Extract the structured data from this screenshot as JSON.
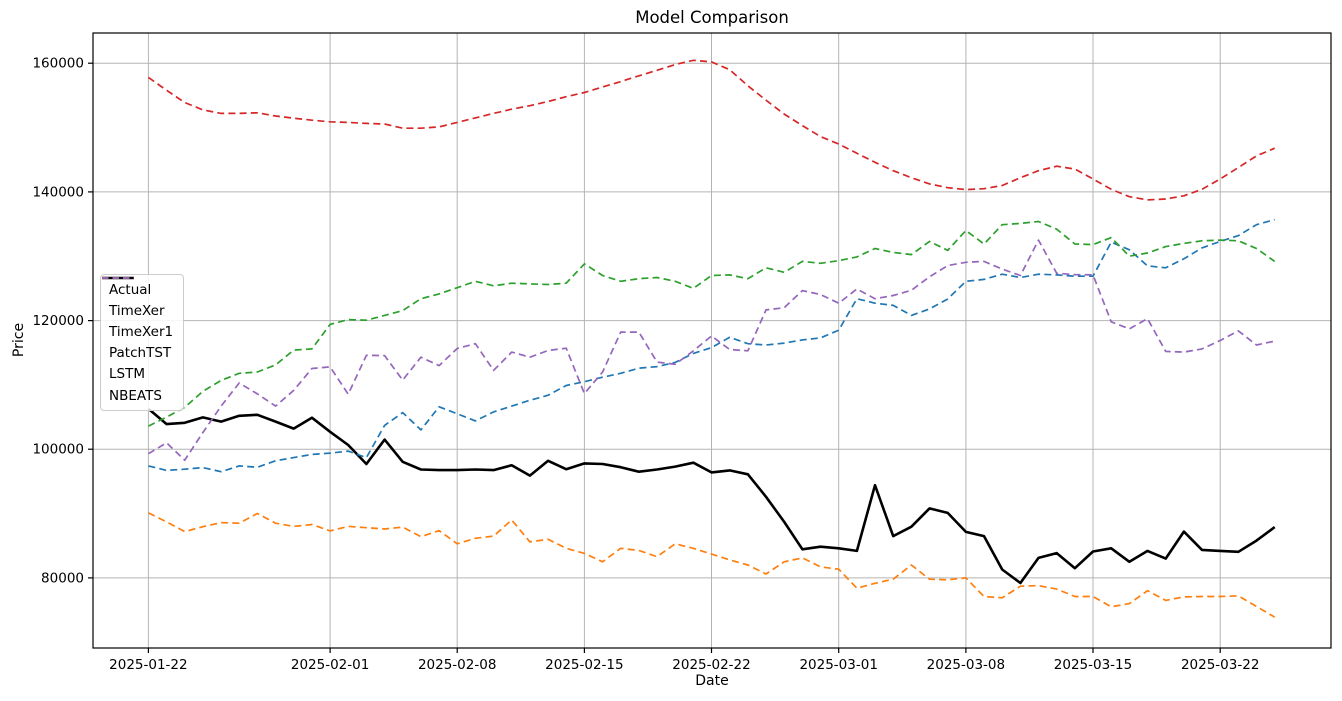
{
  "chart_data": {
    "type": "line",
    "title": "Model Comparison",
    "xlabel": "Date",
    "ylabel": "Price",
    "grid": true,
    "legend_position": "left-center",
    "ylim": [
      69100,
      164700
    ],
    "xlim_days": [
      -3.05,
      65.1
    ],
    "yticks": [
      80000,
      100000,
      120000,
      140000,
      160000
    ],
    "ytick_labels": [
      "80000",
      "100000",
      "120000",
      "140000",
      "160000"
    ],
    "xticks": [
      {
        "index": 0,
        "label": "2025-01-22"
      },
      {
        "index": 10,
        "label": "2025-02-01"
      },
      {
        "index": 17,
        "label": "2025-02-08"
      },
      {
        "index": 24,
        "label": "2025-02-15"
      },
      {
        "index": 31,
        "label": "2025-02-22"
      },
      {
        "index": 38,
        "label": "2025-03-01"
      },
      {
        "index": 45,
        "label": "2025-03-08"
      },
      {
        "index": 52,
        "label": "2025-03-15"
      },
      {
        "index": 59,
        "label": "2025-03-22"
      }
    ],
    "x": [
      "2025-01-22",
      "2025-01-23",
      "2025-01-24",
      "2025-01-25",
      "2025-01-26",
      "2025-01-27",
      "2025-01-28",
      "2025-01-29",
      "2025-01-30",
      "2025-01-31",
      "2025-02-01",
      "2025-02-02",
      "2025-02-03",
      "2025-02-04",
      "2025-02-05",
      "2025-02-06",
      "2025-02-07",
      "2025-02-08",
      "2025-02-09",
      "2025-02-10",
      "2025-02-11",
      "2025-02-12",
      "2025-02-13",
      "2025-02-14",
      "2025-02-15",
      "2025-02-16",
      "2025-02-17",
      "2025-02-18",
      "2025-02-19",
      "2025-02-20",
      "2025-02-21",
      "2025-02-22",
      "2025-02-23",
      "2025-02-24",
      "2025-02-25",
      "2025-02-26",
      "2025-02-27",
      "2025-02-28",
      "2025-03-01",
      "2025-03-02",
      "2025-03-03",
      "2025-03-04",
      "2025-03-05",
      "2025-03-06",
      "2025-03-07",
      "2025-03-08",
      "2025-03-09",
      "2025-03-10",
      "2025-03-11",
      "2025-03-12",
      "2025-03-13",
      "2025-03-14",
      "2025-03-15",
      "2025-03-16",
      "2025-03-17",
      "2025-03-18",
      "2025-03-19",
      "2025-03-20",
      "2025-03-21",
      "2025-03-22",
      "2025-03-23",
      "2025-03-24",
      "2025-03-25"
    ],
    "series": [
      {
        "name": "Actual",
        "color": "#000000",
        "style": "solid",
        "width": 2.6,
        "values": [
          106300,
          103900,
          104100,
          104950,
          104300,
          105200,
          105350,
          104300,
          103200,
          104900,
          102700,
          100650,
          97700,
          101500,
          98050,
          96850,
          96750,
          96750,
          96850,
          96750,
          97500,
          95900,
          98200,
          96900,
          97800,
          97700,
          97200,
          96500,
          96850,
          97300,
          97900,
          96400,
          96700,
          96100,
          92600,
          88700,
          84450,
          84850,
          84600,
          84200,
          94400,
          86500,
          87950,
          90800,
          90100,
          87150,
          86500,
          81300,
          79200,
          83100,
          83850,
          81500,
          84100,
          84600,
          82500,
          84200,
          83000,
          87200,
          84350,
          84200,
          84050,
          85800,
          87900
        ]
      },
      {
        "name": "TimeXer",
        "color": "#1f77b4",
        "style": "dashed",
        "width": 1.7,
        "values": [
          97400,
          96700,
          96900,
          97150,
          96500,
          97400,
          97200,
          98200,
          98700,
          99200,
          99400,
          99700,
          98700,
          103700,
          105700,
          103000,
          106600,
          105500,
          104400,
          105800,
          106700,
          107600,
          108400,
          109900,
          110500,
          111200,
          111800,
          112600,
          112850,
          113500,
          114900,
          115800,
          117400,
          116400,
          116200,
          116500,
          117000,
          117300,
          118500,
          123400,
          122700,
          122350,
          120800,
          121800,
          123350,
          126100,
          126400,
          127200,
          126700,
          127200,
          127100,
          126900,
          126900,
          132200,
          131000,
          128500,
          128200,
          129600,
          131300,
          132300,
          133200,
          134900,
          135700
        ]
      },
      {
        "name": "TimeXer1",
        "color": "#ff7f0e",
        "style": "dashed",
        "width": 1.7,
        "values": [
          90100,
          88700,
          87200,
          87950,
          88600,
          88500,
          90000,
          88500,
          88000,
          88300,
          87300,
          88000,
          87800,
          87600,
          87900,
          86400,
          87350,
          85300,
          86150,
          86500,
          89000,
          85600,
          86000,
          84600,
          83800,
          82500,
          84600,
          84250,
          83300,
          85300,
          84600,
          83700,
          82800,
          82000,
          80600,
          82500,
          83100,
          81700,
          81350,
          78400,
          79150,
          79800,
          82000,
          79800,
          79700,
          80000,
          77100,
          76900,
          78700,
          78800,
          78250,
          77100,
          77100,
          75500,
          76000,
          78000,
          76500,
          77050,
          77100,
          77100,
          77200,
          75550,
          73900
        ]
      },
      {
        "name": "PatchTST",
        "color": "#2ca02c",
        "style": "dashed",
        "width": 1.7,
        "values": [
          103600,
          105000,
          106500,
          109000,
          110700,
          111800,
          112000,
          113100,
          115400,
          115600,
          119400,
          120150,
          120050,
          120800,
          121550,
          123400,
          124150,
          125100,
          126100,
          125400,
          125800,
          125700,
          125600,
          125800,
          128800,
          127000,
          126100,
          126500,
          126700,
          126100,
          125000,
          127000,
          127100,
          126500,
          128200,
          127500,
          129200,
          128900,
          129300,
          129900,
          131200,
          130600,
          130250,
          132300,
          130900,
          134000,
          131900,
          134900,
          135100,
          135400,
          134200,
          131900,
          131800,
          132900,
          130000,
          130500,
          131500,
          132000,
          132400,
          132500,
          132400,
          131200,
          129200
        ]
      },
      {
        "name": "LSTM",
        "color": "#d62728",
        "style": "dashed",
        "width": 1.7,
        "values": [
          157800,
          155800,
          153900,
          152750,
          152200,
          152200,
          152300,
          151800,
          151450,
          151150,
          150900,
          150800,
          150650,
          150550,
          149900,
          149900,
          150100,
          150800,
          151500,
          152200,
          152850,
          153400,
          154050,
          154800,
          155450,
          156300,
          157150,
          158050,
          158900,
          159800,
          160450,
          160200,
          159000,
          156500,
          154250,
          152100,
          150300,
          148600,
          147450,
          146000,
          144600,
          143300,
          142200,
          141250,
          140650,
          140350,
          140500,
          141000,
          142200,
          143300,
          144000,
          143550,
          142000,
          140400,
          139250,
          138750,
          138900,
          139400,
          140400,
          142000,
          143800,
          145600,
          146800
        ]
      },
      {
        "name": "NBEATS",
        "color": "#9467bd",
        "style": "dashed",
        "width": 1.7,
        "values": [
          99300,
          101000,
          98300,
          102600,
          106700,
          110300,
          108600,
          106700,
          109150,
          112550,
          112800,
          108550,
          114600,
          114550,
          110750,
          114300,
          113000,
          115650,
          116400,
          112250,
          115100,
          114300,
          115350,
          115700,
          108650,
          112000,
          118200,
          118200,
          113550,
          113200,
          115300,
          117600,
          115500,
          115300,
          121650,
          122000,
          124650,
          124050,
          122700,
          124900,
          123400,
          123900,
          124700,
          126800,
          128550,
          129050,
          129200,
          128000,
          127000,
          132500,
          127350,
          127150,
          127100,
          119800,
          118700,
          120300,
          115200,
          115100,
          115600,
          116900,
          118400,
          116200,
          116800
        ]
      }
    ]
  }
}
